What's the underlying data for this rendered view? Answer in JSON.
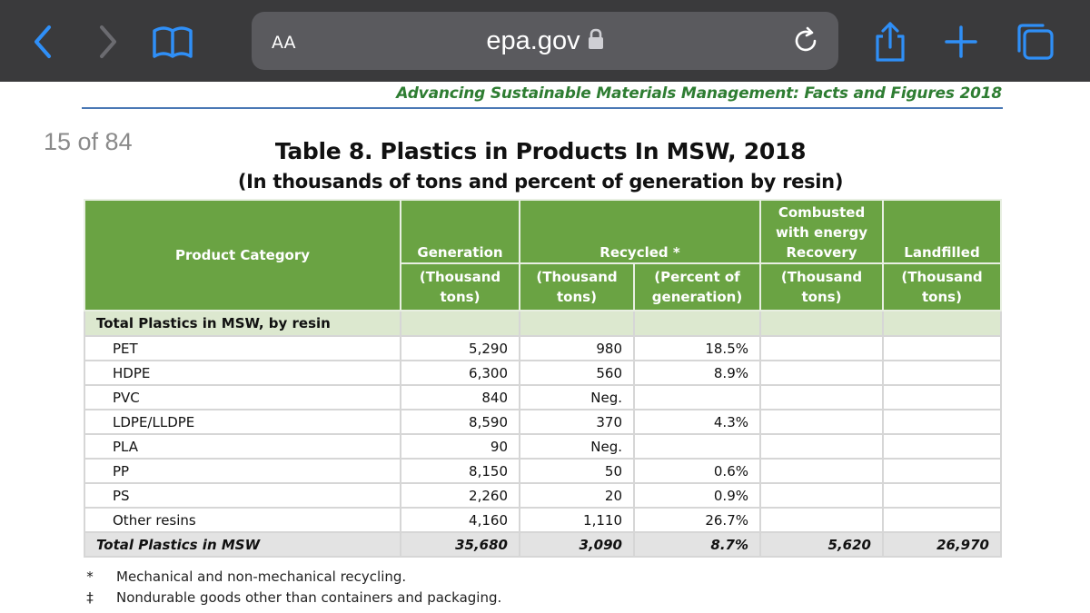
{
  "browser": {
    "text_size_label": "AA",
    "url": "epa.gov"
  },
  "document": {
    "running_header": "Advancing Sustainable Materials Management: Facts and Figures 2018",
    "page_indicator": "15 of 84",
    "table_title": "Table 8. Plastics in Products In MSW, 2018",
    "table_subtitle": "(In thousands of tons and percent of generation by resin)",
    "table": {
      "header": {
        "product_category": "Product Category",
        "generation": "Generation",
        "recycled": "Recycled *",
        "combusted": "Combusted with energy Recovery",
        "landfilled": "Landfilled",
        "unit_thousand_tons": "(Thousand tons)",
        "unit_percent": "(Percent of generation)"
      },
      "section_label": "Total Plastics in MSW, by resin",
      "rows": [
        {
          "category": "PET",
          "generation": "5,290",
          "recycled_tons": "980",
          "recycled_pct": "18.5%",
          "combusted": "",
          "landfilled": ""
        },
        {
          "category": "HDPE",
          "generation": "6,300",
          "recycled_tons": "560",
          "recycled_pct": "8.9%",
          "combusted": "",
          "landfilled": ""
        },
        {
          "category": "PVC",
          "generation": "840",
          "recycled_tons": "Neg.",
          "recycled_pct": "",
          "combusted": "",
          "landfilled": ""
        },
        {
          "category": "LDPE/LLDPE",
          "generation": "8,590",
          "recycled_tons": "370",
          "recycled_pct": "4.3%",
          "combusted": "",
          "landfilled": ""
        },
        {
          "category": "PLA",
          "generation": "90",
          "recycled_tons": "Neg.",
          "recycled_pct": "",
          "combusted": "",
          "landfilled": ""
        },
        {
          "category": "PP",
          "generation": "8,150",
          "recycled_tons": "50",
          "recycled_pct": "0.6%",
          "combusted": "",
          "landfilled": ""
        },
        {
          "category": "PS",
          "generation": "2,260",
          "recycled_tons": "20",
          "recycled_pct": "0.9%",
          "combusted": "",
          "landfilled": ""
        },
        {
          "category": "Other resins",
          "generation": "4,160",
          "recycled_tons": "1,110",
          "recycled_pct": "26.7%",
          "combusted": "",
          "landfilled": ""
        }
      ],
      "total": {
        "category": "Total Plastics in MSW",
        "generation": "35,680",
        "recycled_tons": "3,090",
        "recycled_pct": "8.7%",
        "combusted": "5,620",
        "landfilled": "26,970"
      }
    },
    "footnotes": [
      {
        "symbol": "*",
        "text": "Mechanical and non-mechanical recycling."
      },
      {
        "symbol": "‡",
        "text": "Nondurable goods other than containers and packaging."
      }
    ]
  },
  "colors": {
    "header_green": "#6aa343",
    "section_green": "#dce8cf",
    "running_header_green": "#2e7d32",
    "ios_blue": "#2f8ff7"
  },
  "icons": [
    "back-chevron-icon",
    "forward-chevron-icon",
    "bookmarks-book-icon",
    "lock-icon",
    "reload-icon",
    "share-icon",
    "new-tab-plus-icon",
    "tabs-icon"
  ]
}
